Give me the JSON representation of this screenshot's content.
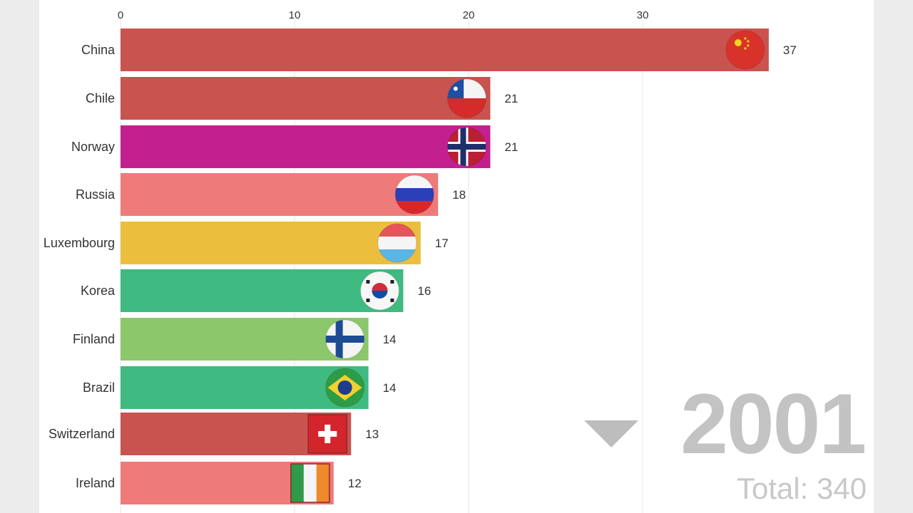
{
  "chart_data": {
    "type": "bar",
    "orientation": "horizontal",
    "xlim": [
      0,
      40
    ],
    "x_ticks": [
      0,
      10,
      20,
      30
    ],
    "grid": true,
    "categories": [
      "China",
      "Chile",
      "Norway",
      "Russia",
      "Luxembourg",
      "Korea",
      "Finland",
      "Brazil",
      "Switzerland",
      "Ireland"
    ],
    "values": [
      37,
      21,
      21,
      18,
      17,
      16,
      14,
      14,
      13,
      12
    ],
    "bar_colors": [
      "#c9534f",
      "#c9534f",
      "#c3208f",
      "#ef7a7a",
      "#ecbe3e",
      "#3fba80",
      "#8cc76b",
      "#3fba80",
      "#c9534f",
      "#ef7a7a"
    ],
    "flag_icons": [
      "china-flag-icon",
      "chile-flag-icon",
      "norway-flag-icon",
      "russia-flag-icon",
      "luxembourg-flag-icon",
      "korea-flag-icon",
      "finland-flag-icon",
      "brazil-flag-icon",
      "switzerland-flag-icon",
      "ireland-flag-icon"
    ]
  },
  "period": {
    "year": "2001",
    "total_label": "Total: 340",
    "trend_icon": "down-triangle-icon",
    "trend_color": "#bdbdbd"
  }
}
